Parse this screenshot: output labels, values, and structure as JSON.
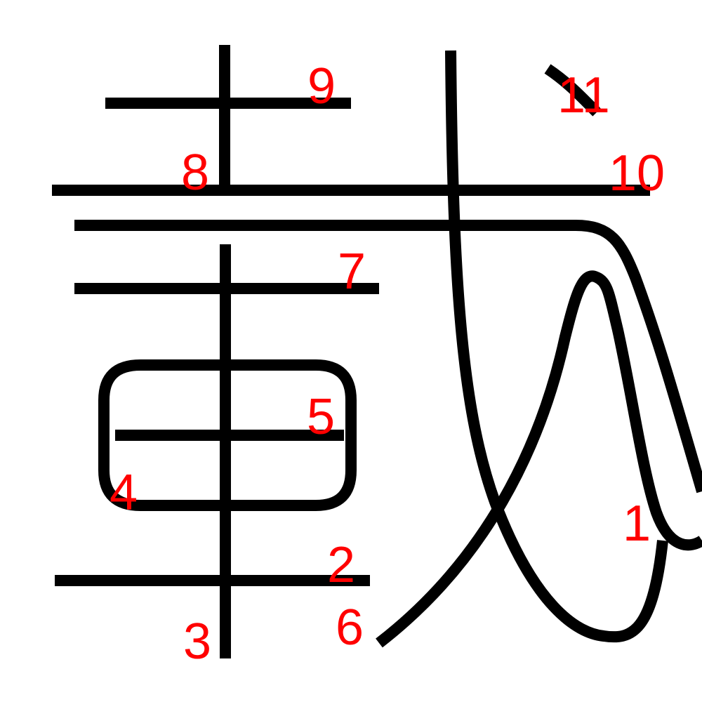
{
  "colors": {
    "stroke": "#000000",
    "label": "#ff0000",
    "background": "#ffffff"
  },
  "stroke_labels": [
    "1",
    "2",
    "3",
    "4",
    "5",
    "6",
    "7",
    "8",
    "9",
    "10",
    "11"
  ]
}
